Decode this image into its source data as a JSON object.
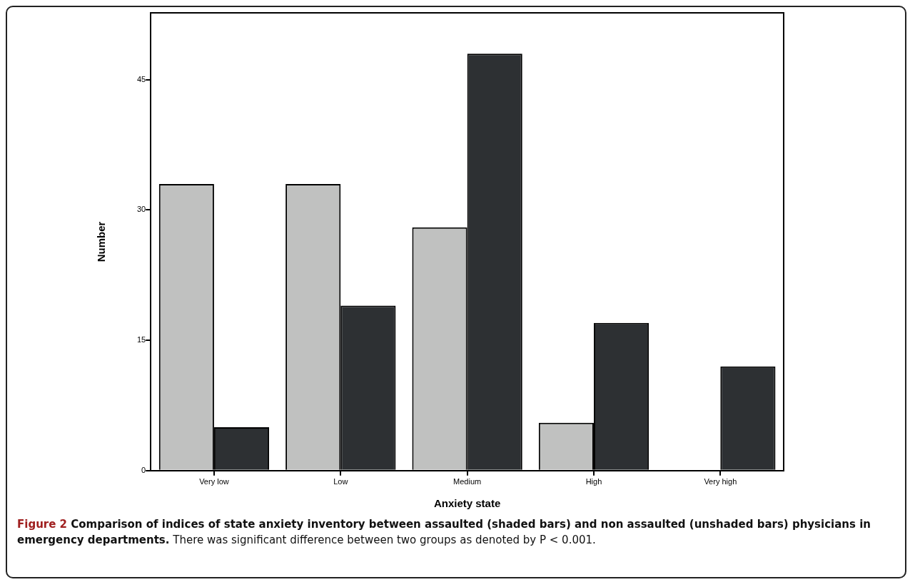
{
  "chart_data": {
    "type": "bar",
    "title": "Figure 2 Comparison of indices of state anxiety inventory between assaulted (shaded bars) and non assaulted (unshaded bars) physicians in emergency departments.",
    "annotations": [
      "There was significant difference between two groups as denoted by P < 0.001."
    ],
    "xlabel": "Anxiety state",
    "ylabel": "Number",
    "categories": [
      "Very low",
      "Low",
      "Medium",
      "High",
      "Very high"
    ],
    "series": [
      {
        "color": "#c0c1c0",
        "values": [
          33,
          33,
          28,
          5.5,
          0
        ]
      },
      {
        "color": "#2d3033",
        "values": [
          5,
          19,
          48,
          17,
          12
        ]
      }
    ],
    "ylim": [
      0,
      52.7
    ],
    "yticks": [
      0,
      15,
      30,
      45
    ],
    "grid": false,
    "legend": false
  }
}
